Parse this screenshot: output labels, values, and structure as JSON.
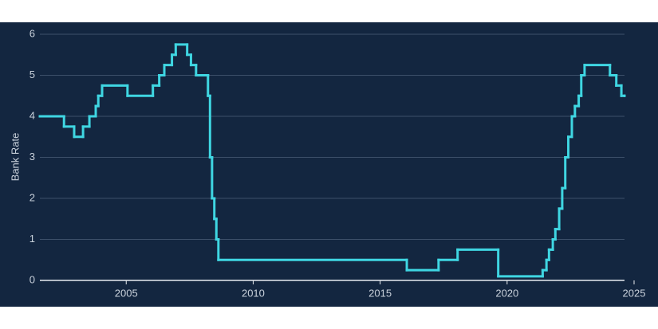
{
  "chart_data": {
    "type": "step",
    "y_label": "Bank Rate",
    "x": [
      2001.6,
      2002.55,
      2002.95,
      2003.3,
      2003.55,
      2003.8,
      2003.9,
      2004.05,
      2005.05,
      2006.05,
      2006.3,
      2006.5,
      2006.8,
      2006.95,
      2007.4,
      2007.55,
      2007.75,
      2008.22,
      2008.3,
      2008.38,
      2008.47,
      2008.55,
      2008.63,
      2016.05,
      2017.3,
      2018.05,
      2019.65,
      2021.4,
      2021.55,
      2021.65,
      2021.8,
      2021.9,
      2022.05,
      2022.17,
      2022.29,
      2022.41,
      2022.55,
      2022.67,
      2022.82,
      2022.92,
      2023.05,
      2024.05,
      2024.3,
      2024.5,
      2024.62
    ],
    "series": [
      {
        "color": "#3fd6e2",
        "values": [
          4,
          3.75,
          3.5,
          3.75,
          4,
          4.25,
          4.5,
          4.75,
          4.5,
          4.75,
          5,
          5.25,
          5.5,
          5.75,
          5.5,
          5.25,
          5,
          4.5,
          3,
          2,
          1.5,
          1,
          0.5,
          0.25,
          0.5,
          0.75,
          0.1,
          0.25,
          0.5,
          0.75,
          1,
          1.25,
          1.75,
          2.25,
          3,
          3.5,
          4,
          4.25,
          4.5,
          5,
          5.25,
          5,
          4.75,
          4.5,
          4.5
        ]
      }
    ],
    "xlim": [
      2001.6,
      2025
    ],
    "xticks": [
      2005,
      2010,
      2015,
      2020,
      2025
    ],
    "ylim": [
      0,
      6
    ],
    "yticks": [
      0,
      1,
      2,
      3,
      4,
      5,
      6
    ],
    "grid": true
  }
}
